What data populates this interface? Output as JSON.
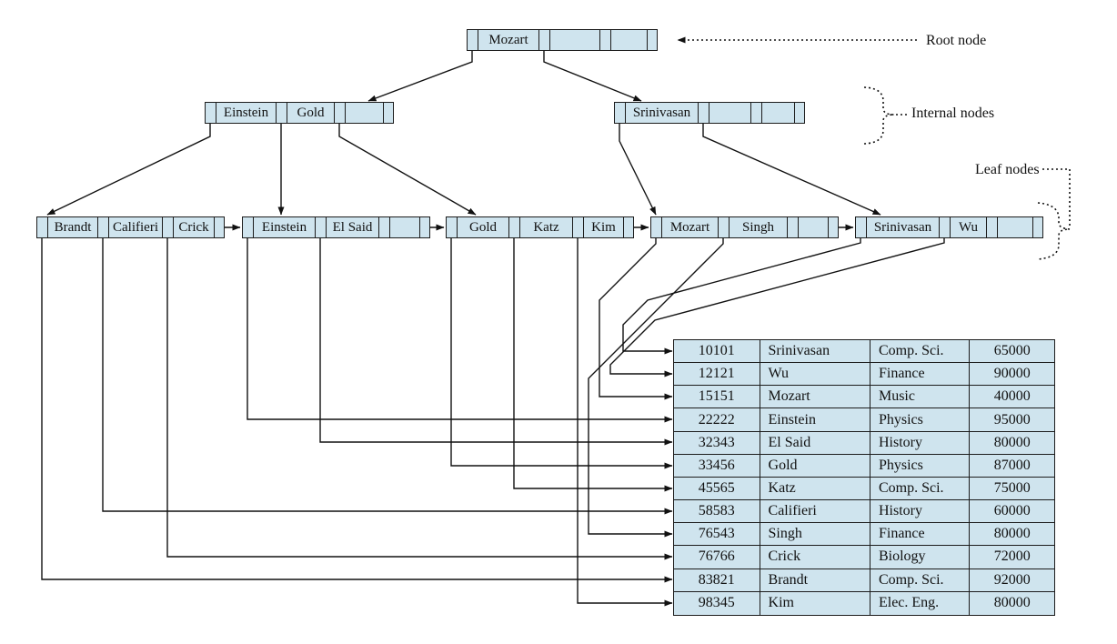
{
  "figure": {
    "annotations": {
      "root": "Root node",
      "internal": "Internal nodes",
      "leaf": "Leaf nodes"
    },
    "tree": {
      "root": {
        "keys": [
          "Mozart",
          "",
          ""
        ]
      },
      "internal": [
        {
          "keys": [
            "Einstein",
            "Gold",
            ""
          ]
        },
        {
          "keys": [
            "Srinivasan",
            "",
            ""
          ]
        }
      ],
      "leaves": [
        {
          "keys": [
            "Brandt",
            "Califieri",
            "Crick"
          ]
        },
        {
          "keys": [
            "Einstein",
            "El Said",
            ""
          ]
        },
        {
          "keys": [
            "Gold",
            "Katz",
            "Kim"
          ]
        },
        {
          "keys": [
            "Mozart",
            "Singh",
            ""
          ]
        },
        {
          "keys": [
            "Srinivasan",
            "Wu",
            ""
          ]
        }
      ]
    },
    "table": {
      "rows": [
        [
          "10101",
          "Srinivasan",
          "Comp. Sci.",
          "65000"
        ],
        [
          "12121",
          "Wu",
          "Finance",
          "90000"
        ],
        [
          "15151",
          "Mozart",
          "Music",
          "40000"
        ],
        [
          "22222",
          "Einstein",
          "Physics",
          "95000"
        ],
        [
          "32343",
          "El Said",
          "History",
          "80000"
        ],
        [
          "33456",
          "Gold",
          "Physics",
          "87000"
        ],
        [
          "45565",
          "Katz",
          "Comp. Sci.",
          "75000"
        ],
        [
          "58583",
          "Califieri",
          "History",
          "60000"
        ],
        [
          "76543",
          "Singh",
          "Finance",
          "80000"
        ],
        [
          "76766",
          "Crick",
          "Biology",
          "72000"
        ],
        [
          "83821",
          "Brandt",
          "Comp. Sci.",
          "92000"
        ],
        [
          "98345",
          "Kim",
          "Elec. Eng.",
          "80000"
        ]
      ]
    },
    "colors": {
      "node_fill": "#cfe4ee",
      "line": "#1c1c1c"
    }
  }
}
